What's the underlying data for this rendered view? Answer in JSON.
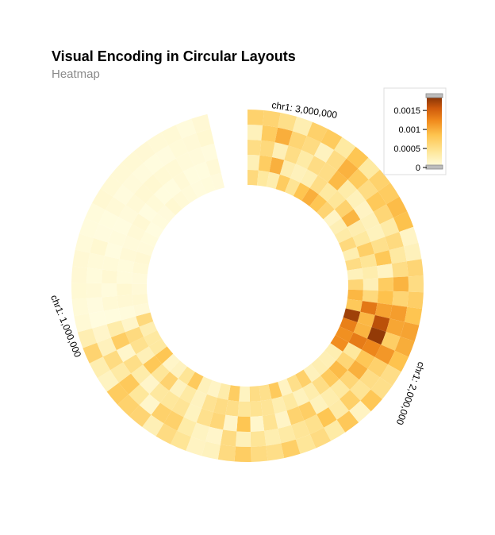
{
  "header": {
    "title": "Visual Encoding in Circular Layouts",
    "subtitle": "Heatmap"
  },
  "chart_data": {
    "type": "heatmap",
    "layout": "circular",
    "title": "Visual Encoding in Circular Layouts",
    "subtitle": "Heatmap",
    "genome_axis": {
      "domain": [
        0,
        3200000
      ],
      "tick_labels": [
        "chr1: 1,000,000",
        "chr1: 2,000,000",
        "chr1: 3,000,000"
      ],
      "tick_values": [
        1000000,
        2000000,
        3000000
      ]
    },
    "color_scale": {
      "name": "orange sequential",
      "domain": [
        0,
        0.0019
      ],
      "legend_ticks": [
        {
          "value": 0,
          "label": "0"
        },
        {
          "value": 0.0005,
          "label": "0.0005"
        },
        {
          "value": 0.001,
          "label": "0.001"
        },
        {
          "value": 0.0015,
          "label": "0.0015"
        }
      ],
      "colors": [
        "#fffde3",
        "#fee9a0",
        "#fec44f",
        "#f08a1c",
        "#cf5a0c",
        "#7a2d05"
      ]
    },
    "rows": 5,
    "bins": 64,
    "legend_position": "top-right"
  }
}
